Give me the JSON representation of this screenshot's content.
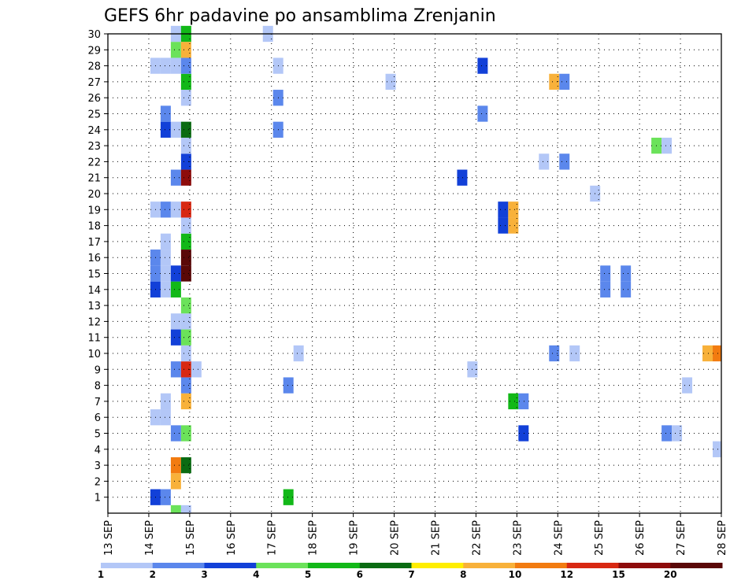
{
  "chart_data": {
    "type": "heatmap",
    "title": "GEFS 6hr padavine po ansamblima Zrenjanin",
    "x_labels": [
      "13 SEP",
      "14 SEP",
      "15 SEP",
      "16 SEP",
      "17 SEP",
      "18 SEP",
      "19 SEP",
      "20 SEP",
      "21 SEP",
      "22 SEP",
      "23 SEP",
      "24 SEP",
      "25 SEP",
      "26 SEP",
      "27 SEP",
      "28 SEP"
    ],
    "y_range": [
      0,
      30
    ],
    "y_ticks": [
      1,
      2,
      3,
      4,
      5,
      6,
      7,
      8,
      9,
      10,
      11,
      12,
      13,
      14,
      15,
      16,
      17,
      18,
      19,
      20,
      21,
      22,
      23,
      24,
      25,
      26,
      27,
      28,
      29,
      30
    ],
    "legend": {
      "labels": [
        "1",
        "2",
        "3",
        "4",
        "5",
        "6",
        "7",
        "8",
        "10",
        "12",
        "15",
        "20"
      ],
      "colors": [
        "#b3c7f7",
        "#5b87ec",
        "#1240d8",
        "#6be25a",
        "#12b818",
        "#0a6b12",
        "#ffee00",
        "#f8b13a",
        "#f27b10",
        "#d82812",
        "#8e0c0c",
        "#5a0808"
      ]
    },
    "step_days": 0.25,
    "cells": [
      {
        "m": 1,
        "d": 14.0,
        "v": 3
      },
      {
        "m": 1,
        "d": 14.25,
        "v": 2
      },
      {
        "m": 1,
        "d": 17.25,
        "v": 5
      },
      {
        "m": 2,
        "d": 14.5,
        "v": 8
      },
      {
        "m": 3,
        "d": 14.5,
        "v": 10
      },
      {
        "m": 3,
        "d": 14.75,
        "v": 6
      },
      {
        "m": 4,
        "d": 27.75,
        "v": 1
      },
      {
        "m": 5,
        "d": 14.5,
        "v": 2
      },
      {
        "m": 5,
        "d": 14.75,
        "v": 4
      },
      {
        "m": 5,
        "d": 23.0,
        "v": 3
      },
      {
        "m": 5,
        "d": 26.5,
        "v": 2
      },
      {
        "m": 5,
        "d": 26.75,
        "v": 1
      },
      {
        "m": 6,
        "d": 14.0,
        "v": 1
      },
      {
        "m": 6,
        "d": 14.25,
        "v": 1
      },
      {
        "m": 7,
        "d": 14.25,
        "v": 1
      },
      {
        "m": 7,
        "d": 14.75,
        "v": 8
      },
      {
        "m": 7,
        "d": 22.75,
        "v": 5
      },
      {
        "m": 7,
        "d": 23.0,
        "v": 2
      },
      {
        "m": 8,
        "d": 14.75,
        "v": 2
      },
      {
        "m": 8,
        "d": 17.25,
        "v": 2
      },
      {
        "m": 8,
        "d": 27.0,
        "v": 1
      },
      {
        "m": 9,
        "d": 14.5,
        "v": 2
      },
      {
        "m": 9,
        "d": 14.75,
        "v": 12
      },
      {
        "m": 9,
        "d": 15.0,
        "v": 1
      },
      {
        "m": 9,
        "d": 21.75,
        "v": 1
      },
      {
        "m": 10,
        "d": 14.75,
        "v": 1
      },
      {
        "m": 10,
        "d": 17.5,
        "v": 1
      },
      {
        "m": 10,
        "d": 23.75,
        "v": 2
      },
      {
        "m": 10,
        "d": 24.25,
        "v": 1
      },
      {
        "m": 10,
        "d": 27.5,
        "v": 8
      },
      {
        "m": 10,
        "d": 27.75,
        "v": 10
      },
      {
        "m": 11,
        "d": 14.5,
        "v": 3
      },
      {
        "m": 11,
        "d": 14.75,
        "v": 4
      },
      {
        "m": 12,
        "d": 14.5,
        "v": 1
      },
      {
        "m": 12,
        "d": 14.75,
        "v": 1
      },
      {
        "m": 13,
        "d": 14.75,
        "v": 4
      },
      {
        "m": 14,
        "d": 14.0,
        "v": 3
      },
      {
        "m": 14,
        "d": 14.25,
        "v": 1
      },
      {
        "m": 14,
        "d": 14.5,
        "v": 5
      },
      {
        "m": 14,
        "d": 25.0,
        "v": 2
      },
      {
        "m": 14,
        "d": 25.5,
        "v": 2
      },
      {
        "m": 15,
        "d": 14.0,
        "v": 2
      },
      {
        "m": 15,
        "d": 14.25,
        "v": 1
      },
      {
        "m": 15,
        "d": 14.5,
        "v": 3
      },
      {
        "m": 15,
        "d": 14.75,
        "v": 20
      },
      {
        "m": 15,
        "d": 25.0,
        "v": 2
      },
      {
        "m": 15,
        "d": 25.5,
        "v": 2
      },
      {
        "m": 16,
        "d": 14.0,
        "v": 2
      },
      {
        "m": 16,
        "d": 14.25,
        "v": 1
      },
      {
        "m": 16,
        "d": 14.75,
        "v": 20
      },
      {
        "m": 17,
        "d": 14.25,
        "v": 1
      },
      {
        "m": 17,
        "d": 14.75,
        "v": 5
      },
      {
        "m": 18,
        "d": 14.75,
        "v": 1
      },
      {
        "m": 18,
        "d": 22.5,
        "v": 3
      },
      {
        "m": 18,
        "d": 22.75,
        "v": 8
      },
      {
        "m": 19,
        "d": 14.0,
        "v": 1
      },
      {
        "m": 19,
        "d": 14.25,
        "v": 2
      },
      {
        "m": 19,
        "d": 14.5,
        "v": 1
      },
      {
        "m": 19,
        "d": 14.75,
        "v": 12
      },
      {
        "m": 19,
        "d": 22.5,
        "v": 3
      },
      {
        "m": 19,
        "d": 22.75,
        "v": 8
      },
      {
        "m": 20,
        "d": 24.75,
        "v": 1
      },
      {
        "m": 21,
        "d": 14.5,
        "v": 2
      },
      {
        "m": 21,
        "d": 14.75,
        "v": 15
      },
      {
        "m": 21,
        "d": 21.5,
        "v": 3
      },
      {
        "m": 22,
        "d": 14.75,
        "v": 3
      },
      {
        "m": 22,
        "d": 23.5,
        "v": 1
      },
      {
        "m": 22,
        "d": 24.0,
        "v": 2
      },
      {
        "m": 23,
        "d": 14.75,
        "v": 1
      },
      {
        "m": 23,
        "d": 26.25,
        "v": 4
      },
      {
        "m": 23,
        "d": 26.5,
        "v": 1
      },
      {
        "m": 24,
        "d": 14.25,
        "v": 3
      },
      {
        "m": 24,
        "d": 14.5,
        "v": 1
      },
      {
        "m": 24,
        "d": 14.75,
        "v": 6
      },
      {
        "m": 24,
        "d": 17.0,
        "v": 2
      },
      {
        "m": 25,
        "d": 14.25,
        "v": 2
      },
      {
        "m": 25,
        "d": 22.0,
        "v": 2
      },
      {
        "m": 26,
        "d": 14.75,
        "v": 1
      },
      {
        "m": 26,
        "d": 17.0,
        "v": 2
      },
      {
        "m": 27,
        "d": 14.75,
        "v": 5
      },
      {
        "m": 27,
        "d": 19.75,
        "v": 1
      },
      {
        "m": 27,
        "d": 23.75,
        "v": 8
      },
      {
        "m": 27,
        "d": 24.0,
        "v": 2
      },
      {
        "m": 28,
        "d": 14.0,
        "v": 1
      },
      {
        "m": 28,
        "d": 14.25,
        "v": 1
      },
      {
        "m": 28,
        "d": 14.5,
        "v": 1
      },
      {
        "m": 28,
        "d": 14.75,
        "v": 2
      },
      {
        "m": 28,
        "d": 17.0,
        "v": 1
      },
      {
        "m": 28,
        "d": 22.0,
        "v": 3
      },
      {
        "m": 29,
        "d": 14.5,
        "v": 4
      },
      {
        "m": 29,
        "d": 14.75,
        "v": 8
      },
      {
        "m": 30,
        "d": 14.5,
        "v": 1
      },
      {
        "m": 30,
        "d": 14.75,
        "v": 5
      },
      {
        "m": 30,
        "d": 16.75,
        "v": 1
      },
      {
        "m": 0,
        "d": 14.5,
        "v": 4
      },
      {
        "m": 0,
        "d": 14.75,
        "v": 1
      }
    ]
  }
}
